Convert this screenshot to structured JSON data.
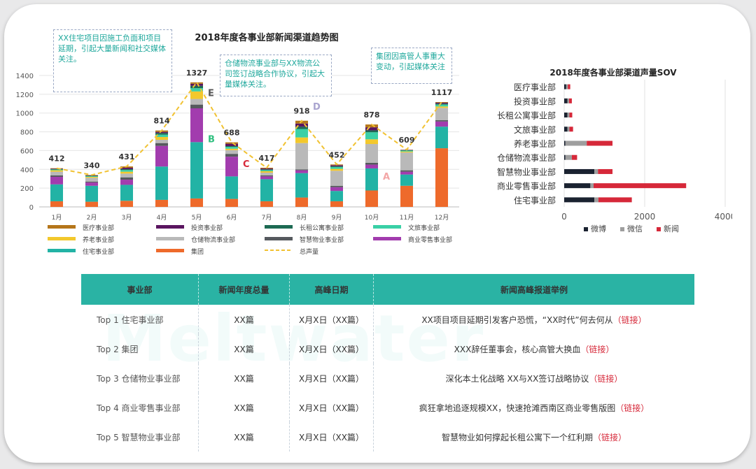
{
  "chart_data": [
    {
      "type": "bar",
      "stacked": true,
      "title": "2018年度各事业部新闻渠道趋势图",
      "categories": [
        "1月",
        "2月",
        "3月",
        "4月",
        "5月",
        "6月",
        "7月",
        "8月",
        "9月",
        "10月",
        "11月",
        "12月"
      ],
      "ylim": [
        0,
        1400
      ],
      "yticks": [
        0,
        200,
        400,
        600,
        800,
        1000,
        1200,
        1400
      ],
      "grid": true,
      "series": [
        {
          "name": "集团",
          "color": "#ee6a2b",
          "values": [
            60,
            55,
            65,
            75,
            90,
            85,
            60,
            100,
            60,
            175,
            225,
            625
          ]
        },
        {
          "name": "住宅事业部",
          "color": "#22b3a5",
          "values": [
            180,
            170,
            170,
            355,
            600,
            240,
            235,
            260,
            110,
            235,
            120,
            230
          ]
        },
        {
          "name": "商业零售事业部",
          "color": "#a23cae",
          "values": [
            80,
            35,
            55,
            220,
            360,
            210,
            30,
            30,
            40,
            40,
            30,
            55
          ]
        },
        {
          "name": "智慧物业事业部",
          "color": "#56595e",
          "values": [
            15,
            10,
            25,
            30,
            40,
            30,
            10,
            10,
            15,
            20,
            15,
            15
          ]
        },
        {
          "name": "仓储物流事业部",
          "color": "#b9b9b9",
          "values": [
            40,
            40,
            40,
            35,
            60,
            40,
            30,
            280,
            160,
            200,
            190,
            130
          ]
        },
        {
          "name": "养老事业部",
          "color": "#f3c82c",
          "values": [
            15,
            10,
            20,
            30,
            80,
            15,
            15,
            60,
            20,
            50,
            10,
            15
          ]
        },
        {
          "name": "文旅事业部",
          "color": "#3ad0a6",
          "values": [
            8,
            8,
            18,
            25,
            35,
            20,
            12,
            90,
            20,
            75,
            10,
            20
          ]
        },
        {
          "name": "长租公寓事业部",
          "color": "#1d6a53",
          "values": [
            4,
            4,
            10,
            17,
            25,
            8,
            8,
            25,
            8,
            20,
            4,
            10
          ]
        },
        {
          "name": "投资事业部",
          "color": "#5a1560",
          "values": [
            5,
            4,
            14,
            12,
            22,
            25,
            9,
            33,
            11,
            33,
            3,
            10
          ]
        },
        {
          "name": "医疗事业部",
          "color": "#b5761a",
          "values": [
            5,
            4,
            14,
            15,
            15,
            15,
            8,
            30,
            8,
            30,
            2,
            7
          ]
        }
      ],
      "totals_line": {
        "name": "总声量",
        "values": [
          412,
          340,
          431,
          814,
          1327,
          688,
          417,
          918,
          452,
          878,
          609,
          1117
        ]
      },
      "data_labels": [
        "412",
        "340",
        "431",
        "814",
        "1327",
        "688",
        "417",
        "918",
        "452",
        "878",
        "609",
        "1117"
      ],
      "markers": [
        {
          "label": "A",
          "month_index": 9,
          "value": 290,
          "color": "#f3a6a6"
        },
        {
          "label": "B",
          "month_index": 4,
          "value": 690,
          "color": "#2fbf7f"
        },
        {
          "label": "C",
          "month_index": 5,
          "value": 425,
          "color": "#d62839"
        },
        {
          "label": "D",
          "month_index": 7,
          "value": 1035,
          "color": "#a9a4cf"
        },
        {
          "label": "E",
          "month_index": 4,
          "value": 1180,
          "color": "#555555"
        }
      ],
      "annotations": [
        "XX住宅项目因施工负面和项目延期，引起大量新闻和社交媒体关注。",
        "仓储物流事业部与XX物流公司签订战略合作协议，引起大量媒体关注。",
        "集团因高管人事重大变动，引起媒体关注"
      ]
    },
    {
      "type": "bar",
      "orientation": "horizontal",
      "stacked": true,
      "title": "2018年度各事业部渠道声量SOV",
      "categories": [
        "住宅事业部",
        "商业零售事业部",
        "智慧物业事业部",
        "仓储物流事业部",
        "养老事业部",
        "文旅事业部",
        "长租公寓事业部",
        "投资事业部",
        "医疗事业部"
      ],
      "xlim": [
        0,
        4000
      ],
      "xticks": [
        0,
        2000,
        4000
      ],
      "series": [
        {
          "name": "微博",
          "color": "#1a2230",
          "values": [
            750,
            650,
            750,
            30,
            30,
            80,
            80,
            80,
            50
          ]
        },
        {
          "name": "微信",
          "color": "#9e9e9e",
          "values": [
            100,
            80,
            90,
            160,
            530,
            50,
            50,
            40,
            40
          ]
        },
        {
          "name": "新闻",
          "color": "#d62839",
          "values": [
            830,
            2300,
            360,
            130,
            640,
            90,
            70,
            70,
            60
          ]
        }
      ]
    }
  ],
  "table": {
    "headers": [
      "事业部",
      "新闻年度总量",
      "高峰日期",
      "新闻高峰报道举例"
    ],
    "rows": [
      {
        "dept": "Top 1  住宅事业部",
        "total": "XX篇",
        "date": "X月X日（XX篇）",
        "example": "XX项目项目延期引发客户恐慌，“XX时代”何去何从",
        "link": "（链接）"
      },
      {
        "dept": "Top 2  集团",
        "total": "XX篇",
        "date": "X月X日（XX篇）",
        "example": "XXX辞任董事会，核心高管大换血",
        "link": "（链接）"
      },
      {
        "dept": "Top 3  仓储物业事业部",
        "total": "XX篇",
        "date": "X月X日（XX篇）",
        "example": "深化本土化战略 XX与XX签订战略协议",
        "link": "（链接）"
      },
      {
        "dept": "Top 4  商业零售事业部",
        "total": "XX篇",
        "date": "X月X日（XX篇）",
        "example": "疯狂拿地追逐规模XX，快速抢滩西南区商业零售版图",
        "link": "（链接）"
      },
      {
        "dept": "Top 5  智慧物业事业部",
        "total": "XX篇",
        "date": "X月X日（XX篇）",
        "example": "智慧物业如何撑起长租公寓下一个红利期",
        "link": "（链接）"
      }
    ]
  },
  "watermark": "Meltwater"
}
